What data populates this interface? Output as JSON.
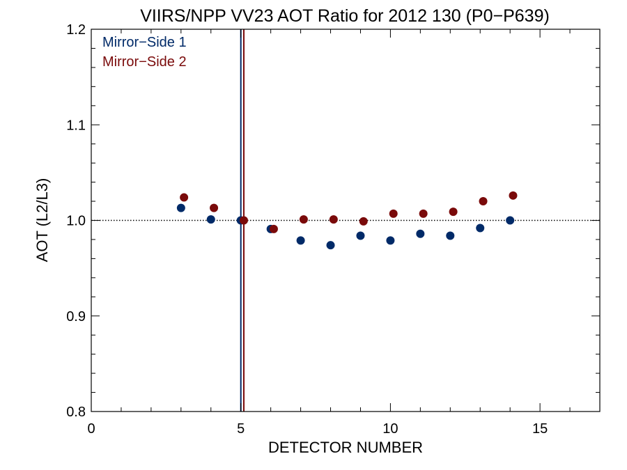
{
  "chart_data": {
    "type": "scatter",
    "title": "VIIRS/NPP VV23 AOT Ratio for 2012 130 (P0−P639)",
    "xlabel": "DETECTOR NUMBER",
    "ylabel": "AOT (L2/L3)",
    "xlim": [
      0,
      17
    ],
    "ylim": [
      0.8,
      1.2
    ],
    "x_ticks": [
      0,
      5,
      10,
      15
    ],
    "x_tick_labels": [
      "0",
      "5",
      "10",
      "15"
    ],
    "y_ticks": [
      0.8,
      0.9,
      1.0,
      1.1,
      1.2
    ],
    "y_tick_labels": [
      "0.8",
      "0.9",
      "1.0",
      "1.1",
      "1.2"
    ],
    "grid": false,
    "legend_position": "top-left",
    "reference_line_y": 1.0,
    "vertical_lines": [
      {
        "x": 5.0,
        "color": "#002a68"
      },
      {
        "x": 5.1,
        "color": "#7a0a0a"
      }
    ],
    "series": [
      {
        "name": "Mirror−Side 1",
        "color": "#002a68",
        "x": [
          3,
          4,
          5,
          6,
          7,
          8,
          9,
          10,
          11,
          12,
          13,
          14
        ],
        "y": [
          1.013,
          1.001,
          1.0,
          0.991,
          0.979,
          0.974,
          0.984,
          0.979,
          0.986,
          0.984,
          0.992,
          1.0
        ]
      },
      {
        "name": "Mirror−Side 2",
        "color": "#7a0a0a",
        "x": [
          3.1,
          4.1,
          5.1,
          6.1,
          7.1,
          8.1,
          9.1,
          10.1,
          11.1,
          12.1,
          13.1,
          14.1
        ],
        "y": [
          1.024,
          1.013,
          1.0,
          0.991,
          1.001,
          1.001,
          0.999,
          1.007,
          1.007,
          1.009,
          1.02,
          1.026
        ]
      }
    ]
  }
}
